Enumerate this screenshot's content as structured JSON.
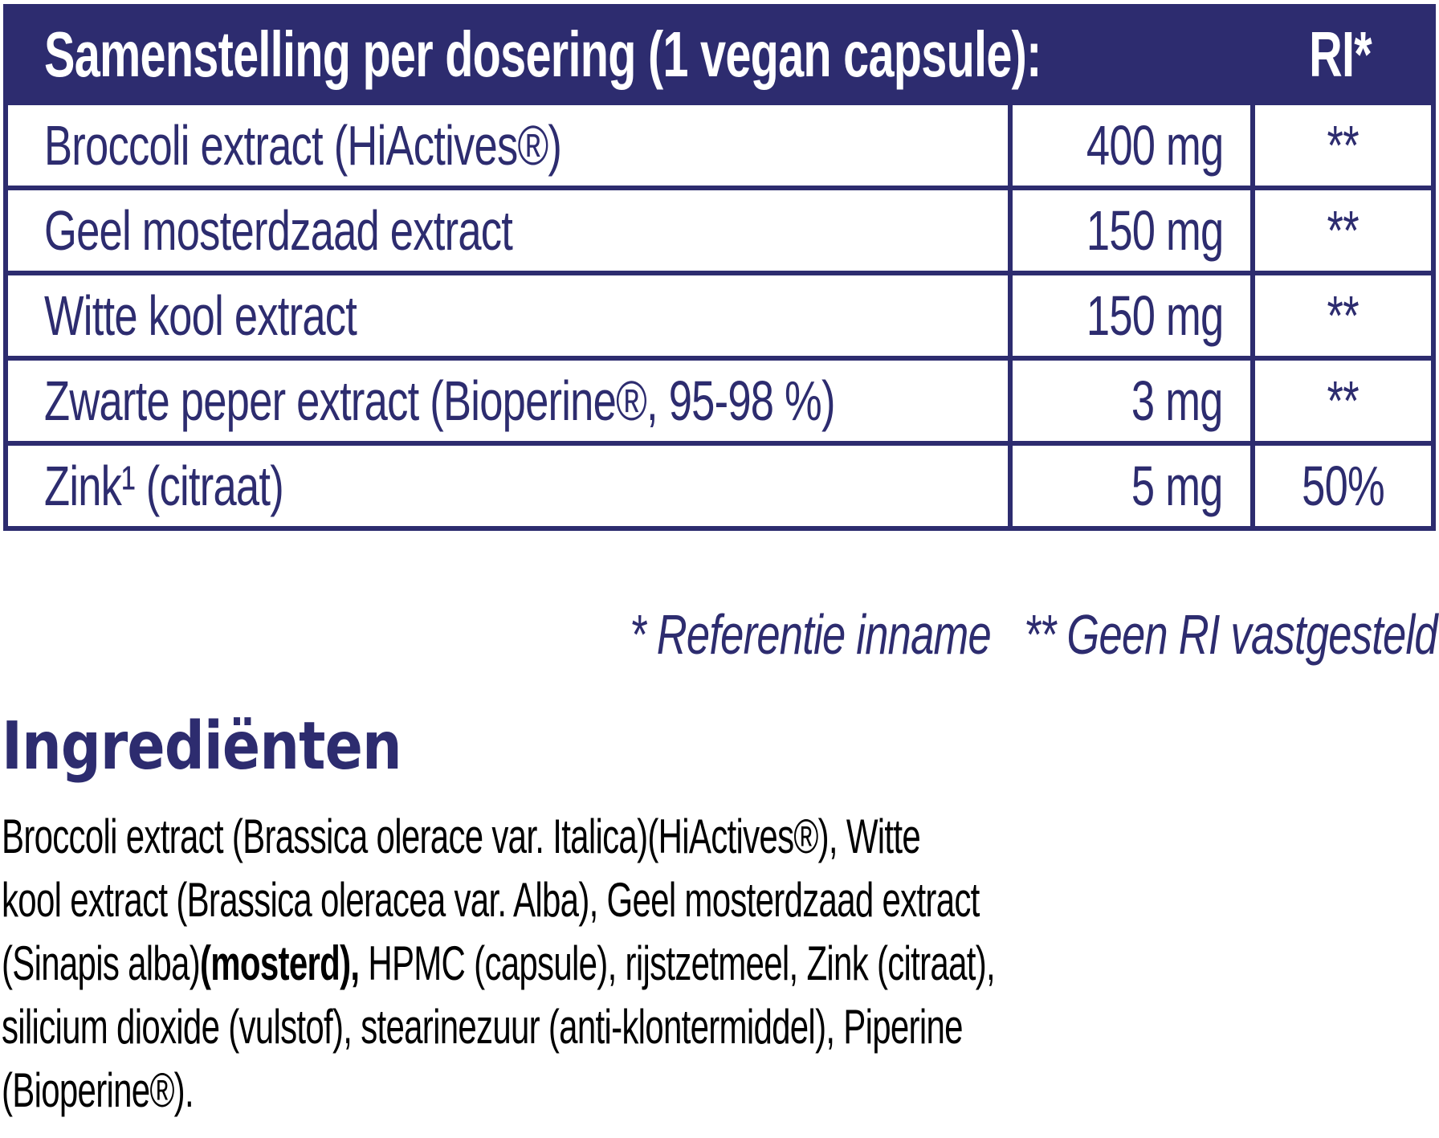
{
  "colors": {
    "navy": "#2d2c6f",
    "white": "#ffffff",
    "black": "#000000"
  },
  "table": {
    "header": {
      "title": "Samenstelling per dosering (1 vegan capsule):",
      "ri_label": "RI*"
    },
    "rows": [
      {
        "name": "Broccoli extract (HiActives®)",
        "amount": "400 mg",
        "ri": "**"
      },
      {
        "name": "Geel mosterdzaad extract",
        "amount": "150 mg",
        "ri": "**"
      },
      {
        "name": "Witte kool extract",
        "amount": "150 mg",
        "ri": "**"
      },
      {
        "name": "Zwarte peper extract (Bioperine®, 95-98 %)",
        "amount": "3 mg",
        "ri": "**"
      },
      {
        "name": "Zink¹ (citraat)",
        "amount": "5 mg",
        "ri": "50%"
      }
    ]
  },
  "footnote": {
    "reference": "* Referentie inname",
    "no_ri": "** Geen RI vastgesteld"
  },
  "ingredients": {
    "heading": "Ingrediënten",
    "line1": "Broccoli extract (Brassica olerace var. Italica)(HiActives®), Witte",
    "line2": "kool extract (Brassica oleracea var. Alba), Geel mosterdzaad extract",
    "line3": {
      "pre": "(Sinapis alba)",
      "bold": "(mosterd),",
      "post": " HPMC (capsule), rijstzetmeel, Zink (citraat),"
    },
    "line4": "silicium dioxide (vulstof), stearinezuur (anti-klontermiddel), Piperine",
    "line5": "(Bioperine®)."
  }
}
